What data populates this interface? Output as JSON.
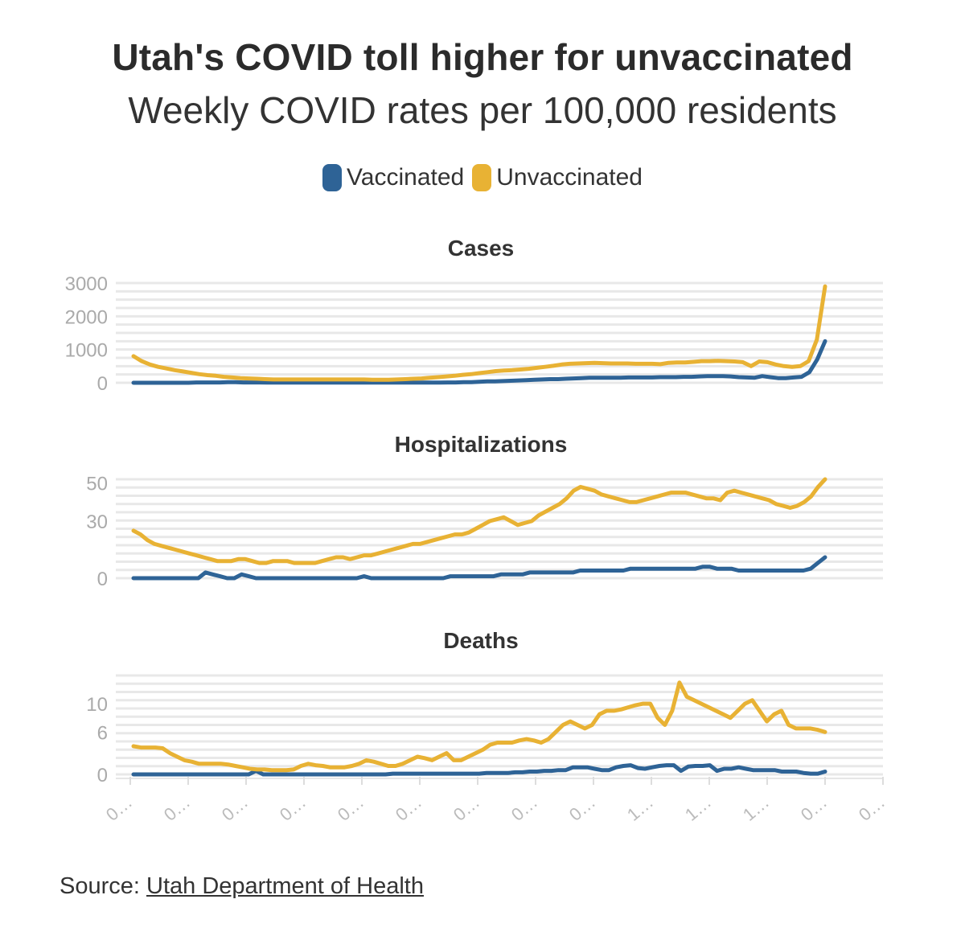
{
  "title": "Utah's COVID toll higher for unvaccinated",
  "subtitle": "Weekly COVID rates per 100,000 residents",
  "legend": [
    {
      "label": "Vaccinated",
      "color": "#2e6396"
    },
    {
      "label": "Unvaccinated",
      "color": "#e8b234"
    }
  ],
  "source": {
    "prefix": "Source: ",
    "link_text": "Utah Department of Health"
  },
  "chart_data": [
    {
      "type": "line",
      "title": "Cases",
      "ylim": [
        0,
        3000
      ],
      "yticks": [
        "3000",
        "2000",
        "1000",
        "0"
      ],
      "ytick_values": [
        3000,
        2000,
        1000,
        0
      ],
      "grid": true,
      "series": [
        {
          "name": "Vaccinated",
          "color": "#2e6396",
          "values": [
            0,
            0,
            0,
            0,
            0,
            0,
            0,
            0,
            10,
            10,
            10,
            10,
            20,
            20,
            10,
            10,
            10,
            5,
            5,
            5,
            5,
            5,
            5,
            5,
            5,
            5,
            5,
            5,
            5,
            5,
            5,
            5,
            5,
            5,
            5,
            5,
            5,
            5,
            5,
            5,
            10,
            10,
            20,
            20,
            30,
            40,
            40,
            50,
            60,
            70,
            80,
            90,
            100,
            110,
            110,
            120,
            130,
            140,
            150,
            150,
            150,
            150,
            150,
            160,
            160,
            160,
            160,
            170,
            170,
            170,
            180,
            180,
            190,
            200,
            200,
            200,
            190,
            170,
            160,
            150,
            200,
            170,
            140,
            140,
            160,
            180,
            320,
            700,
            1250
          ]
        },
        {
          "name": "Unvaccinated",
          "color": "#e8b234",
          "values": [
            800,
            650,
            550,
            480,
            430,
            380,
            340,
            300,
            260,
            230,
            210,
            180,
            160,
            140,
            130,
            120,
            110,
            100,
            100,
            100,
            100,
            100,
            100,
            100,
            100,
            100,
            100,
            100,
            100,
            90,
            90,
            90,
            100,
            110,
            120,
            130,
            150,
            170,
            190,
            210,
            240,
            260,
            290,
            320,
            350,
            370,
            380,
            400,
            420,
            450,
            480,
            510,
            550,
            570,
            580,
            590,
            600,
            590,
            580,
            580,
            580,
            570,
            570,
            570,
            560,
            600,
            610,
            610,
            630,
            650,
            650,
            660,
            650,
            640,
            620,
            500,
            640,
            620,
            550,
            500,
            480,
            500,
            650,
            1300,
            2900
          ]
        }
      ]
    },
    {
      "type": "line",
      "title": "Hospitalizations",
      "ylim": [
        0,
        52
      ],
      "yticks": [
        "50",
        "30",
        "0"
      ],
      "ytick_values": [
        50,
        30,
        0
      ],
      "grid": true,
      "series": [
        {
          "name": "Vaccinated",
          "color": "#2e6396",
          "values": [
            0,
            0,
            0,
            0,
            0,
            0,
            0,
            0,
            0,
            0,
            3,
            2,
            1,
            0,
            0,
            2,
            1,
            0,
            0,
            0,
            0,
            0,
            0,
            0,
            0,
            0,
            0,
            0,
            0,
            0,
            0,
            0,
            1,
            0,
            0,
            0,
            0,
            0,
            0,
            0,
            0,
            0,
            0,
            0,
            1,
            1,
            1,
            1,
            1,
            1,
            1,
            2,
            2,
            2,
            2,
            3,
            3,
            3,
            3,
            3,
            3,
            3,
            4,
            4,
            4,
            4,
            4,
            4,
            4,
            5,
            5,
            5,
            5,
            5,
            5,
            5,
            5,
            5,
            5,
            6,
            6,
            5,
            5,
            5,
            4,
            4,
            4,
            4,
            4,
            4,
            4,
            4,
            4,
            4,
            5,
            8,
            11
          ]
        },
        {
          "name": "Unvaccinated",
          "color": "#e8b234",
          "values": [
            25,
            23,
            20,
            18,
            17,
            16,
            15,
            14,
            13,
            12,
            11,
            10,
            9,
            9,
            9,
            10,
            10,
            9,
            8,
            8,
            9,
            9,
            9,
            8,
            8,
            8,
            8,
            9,
            10,
            11,
            11,
            10,
            11,
            12,
            12,
            13,
            14,
            15,
            16,
            17,
            18,
            18,
            19,
            20,
            21,
            22,
            23,
            23,
            24,
            26,
            28,
            30,
            31,
            32,
            30,
            28,
            29,
            30,
            33,
            35,
            37,
            39,
            42,
            46,
            48,
            47,
            46,
            44,
            43,
            42,
            41,
            40,
            40,
            41,
            42,
            43,
            44,
            45,
            45,
            45,
            44,
            43,
            42,
            42,
            41,
            45,
            46,
            45,
            44,
            43,
            42,
            41,
            39,
            38,
            37,
            38,
            40,
            43,
            48,
            52
          ]
        }
      ]
    },
    {
      "type": "line",
      "title": "Deaths",
      "ylim": [
        0,
        14
      ],
      "yticks": [
        "10",
        "6",
        "0"
      ],
      "ytick_values": [
        10,
        6,
        0
      ],
      "grid": true,
      "series": [
        {
          "name": "Vaccinated",
          "color": "#2e6396",
          "values": [
            0,
            0,
            0,
            0,
            0,
            0,
            0,
            0,
            0,
            0,
            0,
            0,
            0,
            0,
            0,
            0,
            0,
            0.5,
            0,
            0,
            0,
            0,
            0,
            0,
            0,
            0,
            0,
            0,
            0,
            0,
            0,
            0,
            0,
            0,
            0,
            0,
            0.1,
            0.1,
            0.1,
            0.1,
            0.1,
            0.1,
            0.1,
            0.1,
            0.1,
            0.1,
            0.1,
            0.1,
            0.1,
            0.2,
            0.2,
            0.2,
            0.2,
            0.3,
            0.3,
            0.4,
            0.4,
            0.5,
            0.5,
            0.6,
            0.6,
            1,
            1,
            1,
            0.8,
            0.6,
            0.6,
            1,
            1.2,
            1.3,
            0.9,
            0.8,
            1,
            1.2,
            1.3,
            1.3,
            0.5,
            1.1,
            1.2,
            1.2,
            1.3,
            0.5,
            0.8,
            0.8,
            1,
            0.8,
            0.6,
            0.6,
            0.6,
            0.6,
            0.4,
            0.4,
            0.4,
            0.2,
            0.1,
            0.1,
            0.4
          ]
        },
        {
          "name": "Unvaccinated",
          "color": "#e8b234",
          "values": [
            4,
            3.8,
            3.8,
            3.8,
            3.7,
            3,
            2.5,
            2,
            1.8,
            1.5,
            1.5,
            1.5,
            1.5,
            1.4,
            1.2,
            1,
            0.8,
            0.7,
            0.7,
            0.6,
            0.6,
            0.6,
            0.7,
            1.2,
            1.5,
            1.3,
            1.2,
            1,
            1,
            1,
            1.2,
            1.5,
            2,
            1.8,
            1.5,
            1.2,
            1.2,
            1.5,
            2,
            2.5,
            2.3,
            2,
            2.5,
            3,
            2,
            2,
            2.5,
            3,
            3.5,
            4.2,
            4.5,
            4.5,
            4.5,
            4.8,
            5,
            4.8,
            4.5,
            5,
            6,
            7,
            7.5,
            7,
            6.5,
            7,
            8.5,
            9,
            9,
            9.2,
            9.5,
            9.8,
            10,
            10,
            8,
            7,
            9,
            13,
            11,
            10.5,
            10,
            9.5,
            9,
            8.5,
            8,
            9,
            10,
            10.5,
            9,
            7.5,
            8.5,
            9,
            7,
            6.5,
            6.5,
            6.5,
            6.3,
            6
          ]
        }
      ]
    }
  ],
  "x_tick_labels": [
    "0…",
    "0…",
    "0…",
    "0…",
    "0…",
    "0…",
    "0…",
    "0…",
    "0…",
    "1…",
    "1…",
    "1…",
    "0…",
    "0…"
  ]
}
